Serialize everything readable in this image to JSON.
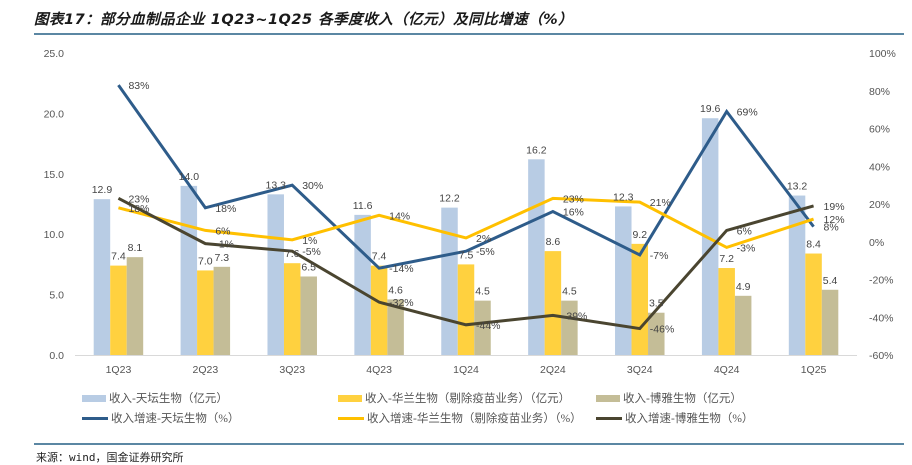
{
  "title": "图表17：部分血制品企业 1Q23~1Q25 各季度收入（亿元）及同比增速（%）",
  "source": "来源：wind，国金证券研究所",
  "chart_data": {
    "type": "bar+line",
    "title": "部分血制品企业 1Q23~1Q25 各季度收入（亿元）及同比增速（%）",
    "categories": [
      "1Q23",
      "2Q23",
      "3Q23",
      "4Q23",
      "1Q24",
      "2Q24",
      "3Q24",
      "4Q24",
      "1Q25"
    ],
    "left_axis": {
      "ylim": [
        0,
        25
      ],
      "ticks": [
        "0.0",
        "5.0",
        "10.0",
        "15.0",
        "20.0",
        "25.0"
      ],
      "tick_values": [
        0,
        5,
        10,
        15,
        20,
        25
      ]
    },
    "right_axis": {
      "ylim": [
        -60,
        100
      ],
      "ticks": [
        "-60%",
        "-40%",
        "-20%",
        "0%",
        "20%",
        "40%",
        "60%",
        "80%",
        "100%"
      ],
      "tick_values": [
        -60,
        -40,
        -20,
        0,
        20,
        40,
        60,
        80,
        100
      ]
    },
    "grid": false,
    "legend_position": "bottom",
    "bar_series": [
      {
        "name": "收入-天坛生物（亿元）",
        "color": "#b8cce4",
        "values": [
          12.9,
          14.0,
          13.3,
          11.6,
          12.2,
          16.2,
          12.3,
          19.6,
          13.2
        ],
        "labels": [
          "12.9",
          "14.0",
          "13.3",
          "11.6",
          "12.2",
          "16.2",
          "12.3",
          "19.6",
          "13.2"
        ]
      },
      {
        "name": "收入-华兰生物（剔除疫苗业务）（亿元）",
        "color": "#ffd13f",
        "values": [
          7.4,
          7.0,
          7.6,
          7.4,
          7.5,
          8.6,
          9.2,
          7.2,
          8.4
        ],
        "labels": [
          "7.4",
          "7.0",
          "7.6",
          "7.4",
          "7.5",
          "8.6",
          "9.2",
          "7.2",
          "8.4"
        ]
      },
      {
        "name": "收入-博雅生物（亿元）",
        "color": "#c4bd97",
        "values": [
          8.1,
          7.3,
          6.5,
          4.6,
          4.5,
          4.5,
          3.5,
          4.9,
          5.4
        ],
        "labels": [
          "8.1",
          "7.3",
          "6.5",
          "4.6",
          "4.5",
          "4.5",
          "3.5",
          "4.9",
          "5.4"
        ]
      }
    ],
    "line_series": [
      {
        "name": "收入增速-天坛生物（%）",
        "color": "#2e5c8a",
        "values": [
          83,
          18,
          30,
          -14,
          -5,
          16,
          -7,
          69,
          8
        ],
        "labels": [
          "83%",
          "18%",
          "30%",
          "-14%",
          "-5%",
          "16%",
          "-7%",
          "69%",
          "8%"
        ]
      },
      {
        "name": "收入增速-华兰生物（剔除疫苗业务）（%）",
        "color": "#ffc000",
        "values": [
          18,
          6,
          1,
          14,
          2,
          23,
          21,
          -3,
          12
        ],
        "labels": [
          "18%",
          "6%",
          "1%",
          "14%",
          "2%",
          "23%",
          "21%",
          "-3%",
          "12%"
        ]
      },
      {
        "name": "收入增速-博雅生物（%）",
        "color": "#4a4530",
        "values": [
          23,
          -1,
          -5,
          -32,
          -44,
          -39,
          -46,
          6,
          19
        ],
        "labels": [
          "23%",
          "-1%",
          "-5%",
          "-32%",
          "-44%",
          "-39%",
          "-46%",
          "6%",
          "19%"
        ]
      }
    ]
  }
}
